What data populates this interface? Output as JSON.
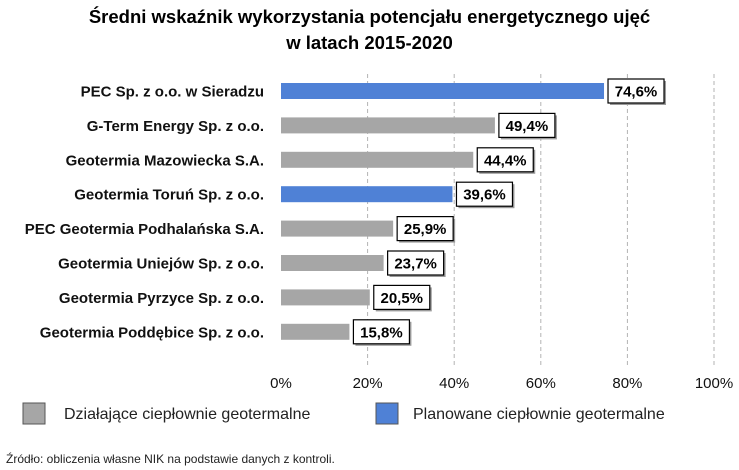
{
  "chart_data": {
    "type": "bar",
    "orientation": "horizontal",
    "title_line1": "Średni wskaźnik wykorzystania potencjału energetycznego ujęć",
    "title_line2": "w latach 2015-2020",
    "categories": [
      "PEC Sp. z o.o. w Sieradzu",
      "G-Term Energy Sp. z o.o.",
      "Geotermia Mazowiecka S.A.",
      "Geotermia Toruń Sp. z o.o.",
      "PEC Geotermia Podhalańska S.A.",
      "Geotermia Uniejów Sp. z o.o.",
      "Geotermia Pyrzyce Sp. z o.o.",
      "Geotermia Poddębice Sp. z o.o."
    ],
    "values": [
      74.6,
      49.4,
      44.4,
      39.6,
      25.9,
      23.7,
      20.5,
      15.8
    ],
    "value_labels": [
      "74,6%",
      "49,4%",
      "44,4%",
      "39,6%",
      "25,9%",
      "23,7%",
      "20,5%",
      "15,8%"
    ],
    "group": [
      "planned",
      "operating",
      "operating",
      "planned",
      "operating",
      "operating",
      "operating",
      "operating"
    ],
    "xlim": [
      0,
      100
    ],
    "xticks": [
      0,
      20,
      40,
      60,
      80,
      100
    ],
    "xtick_labels": [
      "0%",
      "20%",
      "40%",
      "60%",
      "80%",
      "100%"
    ],
    "grid": "vertical dashed",
    "legend": [
      {
        "key": "operating",
        "label": "Działające ciepłownie geotermalne",
        "color": "#a6a6a6"
      },
      {
        "key": "planned",
        "label": "Planowane ciepłownie geotermalne",
        "color": "#4f81d6"
      }
    ],
    "legend_position": "bottom",
    "source": "Źródło: obliczenia własne NIK na podstawie danych z kontroli."
  }
}
